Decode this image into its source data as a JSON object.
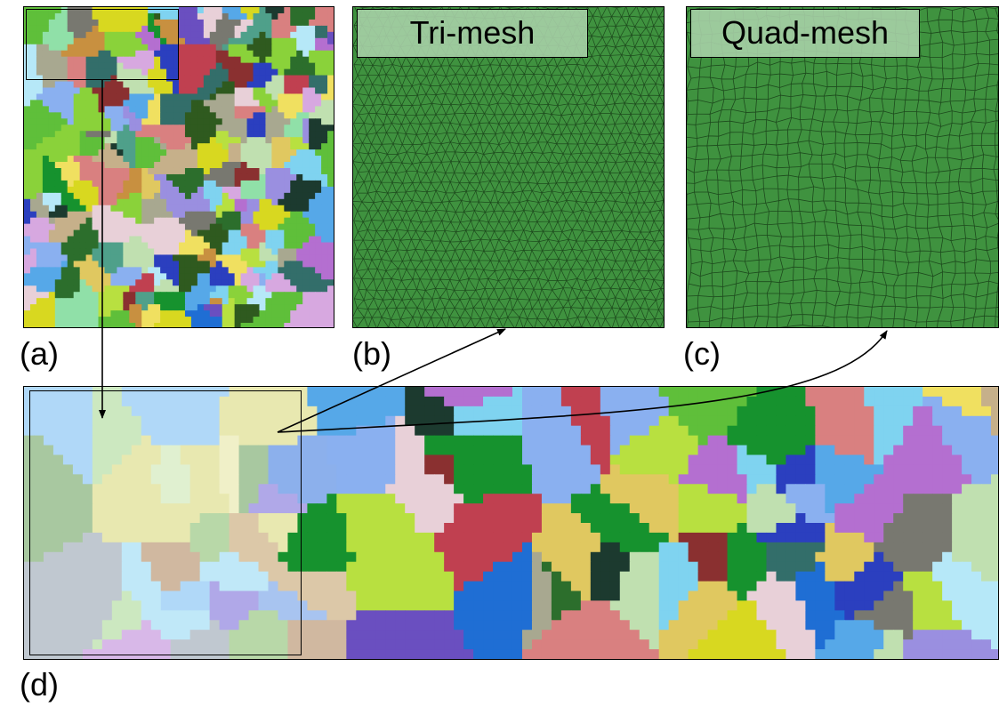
{
  "panels": {
    "a": {
      "caption": "(a)"
    },
    "b": {
      "caption": "(b)",
      "label": "Tri-mesh"
    },
    "c": {
      "caption": "(c)",
      "label": "Quad-mesh"
    },
    "d": {
      "caption": "(d)"
    }
  },
  "colors": {
    "mesh_fill": "#3f923f",
    "mesh_line": "#1d4a1d",
    "grain_palette": [
      "#2b3fbf",
      "#1f6ed4",
      "#56a8e8",
      "#7fd3f0",
      "#b6e8f8",
      "#8ab0f0",
      "#9a8fe0",
      "#6a4fc0",
      "#b46fd0",
      "#d7a8e0",
      "#e8d0d8",
      "#c6b08a",
      "#c89040",
      "#e0c860",
      "#d8d820",
      "#b8e040",
      "#8ad23a",
      "#5fbf3a",
      "#16922e",
      "#2c6e2c",
      "#2f5a1f",
      "#1c3a2f",
      "#336e6a",
      "#4fa08a",
      "#90e0a8",
      "#c0e0b0",
      "#a8a890",
      "#787870",
      "#8a3030",
      "#c04050",
      "#d98080",
      "#f0e060"
    ],
    "grain_palette_zoom": [
      "#b0d8f8",
      "#c0e8f8",
      "#a8c4f0",
      "#8cb0ec",
      "#9a9ae8",
      "#b0a8e8",
      "#c8b4e8",
      "#d8b8e8",
      "#b8d8a8",
      "#cce8c0",
      "#a8c8a0",
      "#e0f0d0",
      "#c8e0c8",
      "#dcc8a8",
      "#d0b8a0",
      "#e8e8b0",
      "#f0f0c8",
      "#c0c8d0",
      "#b8e0e0",
      "#d0e0f8"
    ]
  }
}
